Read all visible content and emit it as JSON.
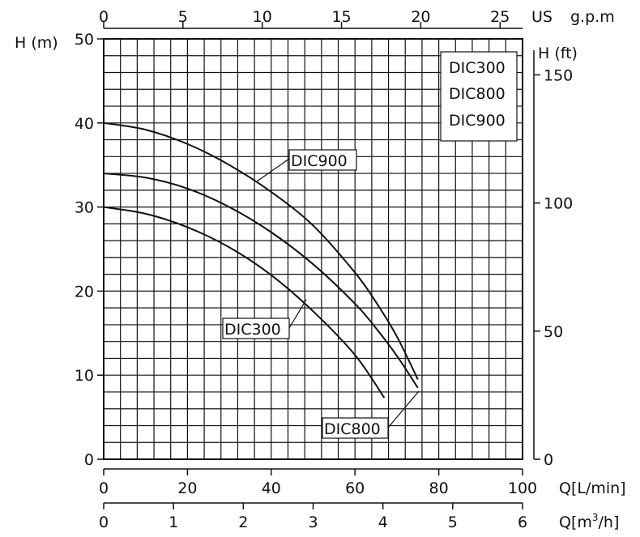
{
  "colors": {
    "line": "#111111",
    "background": "#ffffff"
  },
  "axes": {
    "left_title": "H (m)",
    "right_title": "H (ft)",
    "top_unit": "US",
    "top_unit2": "g.p.m",
    "bottom_unit_lmin": "Q[L/min]",
    "bottom_unit_m3h_prefix": "Q[m",
    "bottom_unit_m3h_sup": "3",
    "bottom_unit_m3h_suffix": "/h]",
    "left_ticks": [
      "0",
      "10",
      "20",
      "30",
      "40",
      "50"
    ],
    "right_ticks": [
      "0",
      "50",
      "100",
      "150"
    ],
    "top_ticks": [
      "0",
      "5",
      "10",
      "15",
      "20",
      "25"
    ],
    "bottom_ticks_lmin": [
      "0",
      "20",
      "40",
      "60",
      "80",
      "100"
    ],
    "bottom_ticks_m3h": [
      "0",
      "1",
      "2",
      "3",
      "4",
      "5",
      "6"
    ]
  },
  "legend": {
    "items": [
      "DIC300",
      "DIC800",
      "DIC900"
    ]
  },
  "callouts": {
    "dic900": "DIC900",
    "dic300": "DIC300",
    "dic800": "DIC800"
  },
  "chart_data": {
    "type": "line",
    "xlabel": "Q[L/min]",
    "ylabel": "H (m)",
    "xlim": [
      0,
      100
    ],
    "ylim": [
      0,
      50
    ],
    "secondary_axes": {
      "top": {
        "label": "US g.p.m",
        "range": [
          0,
          26.4
        ]
      },
      "right": {
        "label": "H (ft)",
        "range": [
          0,
          164
        ]
      },
      "bottom2": {
        "label": "Q[m3/h]",
        "range": [
          0,
          6
        ]
      }
    },
    "grid": true,
    "legend_position": "top-right",
    "series": [
      {
        "name": "DIC900",
        "x": [
          0,
          10,
          20,
          30,
          40,
          50,
          60,
          65,
          70,
          75
        ],
        "y": [
          40,
          39.2,
          37.5,
          35,
          31.8,
          27.8,
          22.2,
          18.7,
          14.6,
          9.5
        ]
      },
      {
        "name": "DIC800",
        "x": [
          0,
          10,
          20,
          30,
          40,
          50,
          60,
          65,
          70,
          75
        ],
        "y": [
          34,
          33.5,
          32.2,
          30,
          27,
          23.2,
          18.5,
          15.6,
          12.3,
          8.5
        ]
      },
      {
        "name": "DIC300",
        "x": [
          0,
          10,
          20,
          30,
          40,
          50,
          60,
          67
        ],
        "y": [
          30,
          29.2,
          27.6,
          25.2,
          21.9,
          17.6,
          12.4,
          7.3
        ]
      }
    ]
  }
}
